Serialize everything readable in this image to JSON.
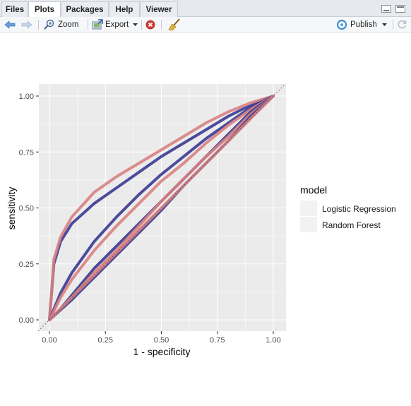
{
  "tabs": [
    {
      "label": "Files"
    },
    {
      "label": "Plots"
    },
    {
      "label": "Packages"
    },
    {
      "label": "Help"
    },
    {
      "label": "Viewer"
    }
  ],
  "active_tab": "Plots",
  "toolbar": {
    "zoom_label": "Zoom",
    "export_label": "Export",
    "publish_label": "Publish"
  },
  "icons": [
    "back-arrow-icon",
    "forward-arrow-icon",
    "zoom-icon",
    "export-icon",
    "remove-plot-icon",
    "broom-icon",
    "publish-icon",
    "refresh-icon"
  ],
  "chart_data": {
    "type": "line",
    "xlabel": "1 - specificity",
    "ylabel": "sensitivity",
    "xlim": [
      0,
      1
    ],
    "ylim": [
      0,
      1
    ],
    "x_ticks": [
      "0.00",
      "0.25",
      "0.50",
      "0.75",
      "1.00"
    ],
    "y_ticks": [
      "0.00",
      "0.25",
      "0.50",
      "0.75",
      "1.00"
    ],
    "grid": true,
    "reference_line": {
      "x": [
        0,
        1
      ],
      "y": [
        0,
        1
      ],
      "style": "dotted"
    },
    "legend": {
      "title": "model",
      "position": "right",
      "entries": [
        "Logistic Regression",
        "Random Forest"
      ]
    },
    "colors": {
      "Logistic Regression": "#3b3a92",
      "Random Forest": "#d98181",
      "panel": "#ebebeb"
    },
    "series": [
      {
        "name": "Logistic Regression",
        "x": [
          0,
          0.02,
          0.05,
          0.1,
          0.2,
          0.3,
          0.4,
          0.5,
          0.6,
          0.7,
          0.8,
          0.9,
          1.0
        ],
        "y": [
          0,
          0.25,
          0.35,
          0.43,
          0.52,
          0.59,
          0.66,
          0.73,
          0.79,
          0.85,
          0.91,
          0.96,
          1.0
        ]
      },
      {
        "name": "Random Forest",
        "x": [
          0,
          0.02,
          0.05,
          0.1,
          0.2,
          0.3,
          0.4,
          0.5,
          0.6,
          0.7,
          0.8,
          0.9,
          1.0
        ],
        "y": [
          0,
          0.27,
          0.37,
          0.46,
          0.57,
          0.64,
          0.7,
          0.76,
          0.82,
          0.88,
          0.93,
          0.97,
          1.0
        ]
      },
      {
        "name": "Logistic Regression",
        "x": [
          0,
          0.05,
          0.1,
          0.2,
          0.3,
          0.4,
          0.5,
          0.6,
          0.7,
          0.8,
          0.9,
          1.0
        ],
        "y": [
          0,
          0.12,
          0.21,
          0.35,
          0.46,
          0.56,
          0.65,
          0.73,
          0.81,
          0.88,
          0.95,
          1.0
        ]
      },
      {
        "name": "Random Forest",
        "x": [
          0,
          0.05,
          0.1,
          0.2,
          0.3,
          0.4,
          0.5,
          0.6,
          0.7,
          0.8,
          0.9,
          1.0
        ],
        "y": [
          0,
          0.1,
          0.18,
          0.31,
          0.42,
          0.52,
          0.62,
          0.7,
          0.79,
          0.87,
          0.94,
          1.0
        ]
      },
      {
        "name": "Logistic Regression",
        "x": [
          0,
          0.05,
          0.1,
          0.2,
          0.3,
          0.4,
          0.5,
          0.6,
          0.7,
          0.8,
          0.9,
          1.0
        ],
        "y": [
          0,
          0.05,
          0.11,
          0.23,
          0.33,
          0.43,
          0.53,
          0.63,
          0.73,
          0.83,
          0.93,
          1.0
        ]
      },
      {
        "name": "Random Forest",
        "x": [
          0,
          0.05,
          0.1,
          0.2,
          0.3,
          0.4,
          0.5,
          0.6,
          0.7,
          0.8,
          0.9,
          1.0
        ],
        "y": [
          0,
          0.05,
          0.1,
          0.21,
          0.31,
          0.42,
          0.53,
          0.63,
          0.73,
          0.82,
          0.92,
          1.0
        ]
      },
      {
        "name": "Logistic Regression",
        "x": [
          0,
          0.1,
          0.2,
          0.3,
          0.4,
          0.5,
          0.6,
          0.7,
          0.8,
          0.9,
          1.0
        ],
        "y": [
          0,
          0.09,
          0.19,
          0.29,
          0.39,
          0.49,
          0.6,
          0.7,
          0.8,
          0.91,
          1.0
        ]
      },
      {
        "name": "Random Forest",
        "x": [
          0,
          1.0
        ],
        "y": [
          0,
          1.0
        ]
      }
    ]
  }
}
